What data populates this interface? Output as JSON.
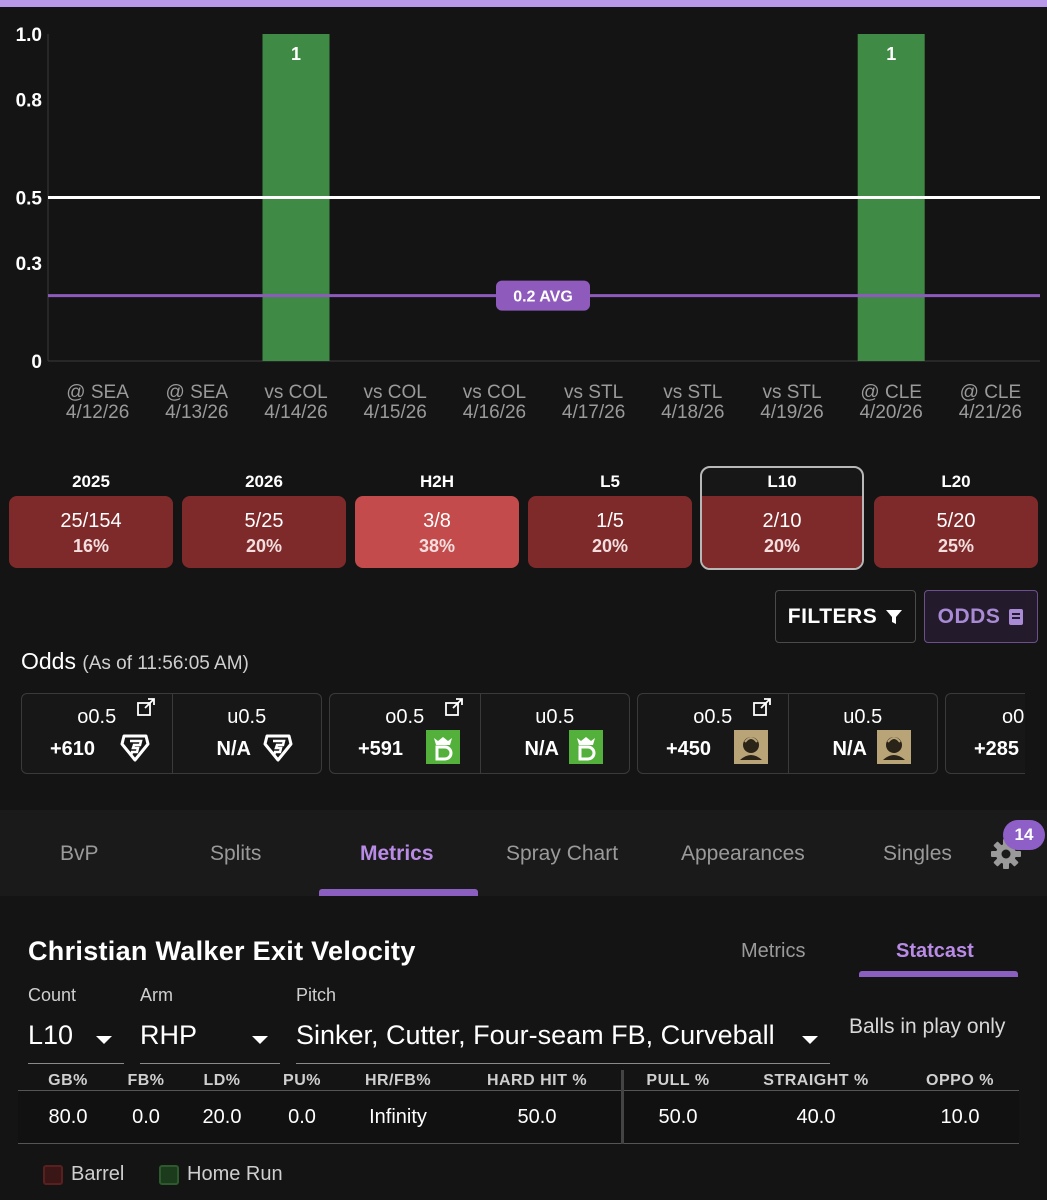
{
  "chart_data": {
    "type": "bar",
    "categories": [
      [
        "@ SEA",
        "4/12/26"
      ],
      [
        "@ SEA",
        "4/13/26"
      ],
      [
        "vs COL",
        "4/14/26"
      ],
      [
        "vs COL",
        "4/15/26"
      ],
      [
        "vs COL",
        "4/16/26"
      ],
      [
        "vs STL",
        "4/17/26"
      ],
      [
        "vs STL",
        "4/18/26"
      ],
      [
        "vs STL",
        "4/19/26"
      ],
      [
        "@ CLE",
        "4/20/26"
      ],
      [
        "@ CLE",
        "4/21/26"
      ]
    ],
    "values": [
      0,
      0,
      1,
      0,
      0,
      0,
      0,
      0,
      1,
      0
    ],
    "yticks": [
      "0",
      "0.3",
      "0.5",
      "0.8",
      "1.0"
    ],
    "ytick_values": [
      0,
      0.3,
      0.5,
      0.8,
      1.0
    ],
    "ylim": [
      0,
      1.0
    ],
    "line_value": 0.5,
    "avg_value": 0.2,
    "avg_label": "0.2 AVG",
    "bar_color": "#3f8a44",
    "line_color": "#ffffff",
    "avg_color": "#8e5bbd"
  },
  "summary": [
    {
      "label": "2025",
      "fraction": "25/154",
      "pct": "16%",
      "light": false,
      "selected": false
    },
    {
      "label": "2026",
      "fraction": "5/25",
      "pct": "20%",
      "light": false,
      "selected": false
    },
    {
      "label": "H2H",
      "fraction": "3/8",
      "pct": "38%",
      "light": true,
      "selected": false
    },
    {
      "label": "L5",
      "fraction": "1/5",
      "pct": "20%",
      "light": false,
      "selected": false
    },
    {
      "label": "L10",
      "fraction": "2/10",
      "pct": "20%",
      "light": false,
      "selected": true
    },
    {
      "label": "L20",
      "fraction": "5/20",
      "pct": "25%",
      "light": false,
      "selected": false
    }
  ],
  "buttons": {
    "filters": "FILTERS",
    "odds": "ODDS"
  },
  "odds": {
    "title": "Odds",
    "as_of": "(As of 11:56:05 AM)",
    "books": [
      {
        "icon": "fanduel-logo",
        "over_line": "o0.5",
        "over_price": "+610",
        "under_line": "u0.5",
        "under_price": "N/A"
      },
      {
        "icon": "draftkings-logo",
        "over_line": "o0.5",
        "over_price": "+591",
        "under_line": "u0.5",
        "under_price": "N/A"
      },
      {
        "icon": "betmgm-logo",
        "over_line": "o0.5",
        "over_price": "+450",
        "under_line": "u0.5",
        "under_price": "N/A"
      },
      {
        "icon": "",
        "over_line": "o0",
        "over_price": "+285",
        "under_line": "",
        "under_price": ""
      }
    ]
  },
  "tabs": [
    "BvP",
    "Splits",
    "Metrics",
    "Spray Chart",
    "Appearances",
    "Singles"
  ],
  "active_tab": "Metrics",
  "badge_count": "14",
  "metrics": {
    "title": "Christian Walker Exit Velocity",
    "subtabs": [
      "Metrics",
      "Statcast"
    ],
    "active_subtab": "Statcast",
    "count_label": "Count",
    "count_value": "L10",
    "arm_label": "Arm",
    "arm_value": "RHP",
    "pitch_label": "Pitch",
    "pitch_value": "Sinker, Cutter, Four-seam FB, Curveball",
    "balls_in_play": "Balls in play only",
    "headers": [
      "GB%",
      "FB%",
      "LD%",
      "PU%",
      "HR/FB%",
      "HARD HIT %",
      "PULL %",
      "STRAIGHT %",
      "OPPO %"
    ],
    "values": [
      "80.0",
      "0.0",
      "20.0",
      "0.0",
      "Infinity",
      "50.0",
      "50.0",
      "40.0",
      "10.0"
    ]
  },
  "legend": [
    {
      "label": "Barrel",
      "color": "#5a2020"
    },
    {
      "label": "Home Run",
      "color": "#2c5a2c"
    }
  ]
}
